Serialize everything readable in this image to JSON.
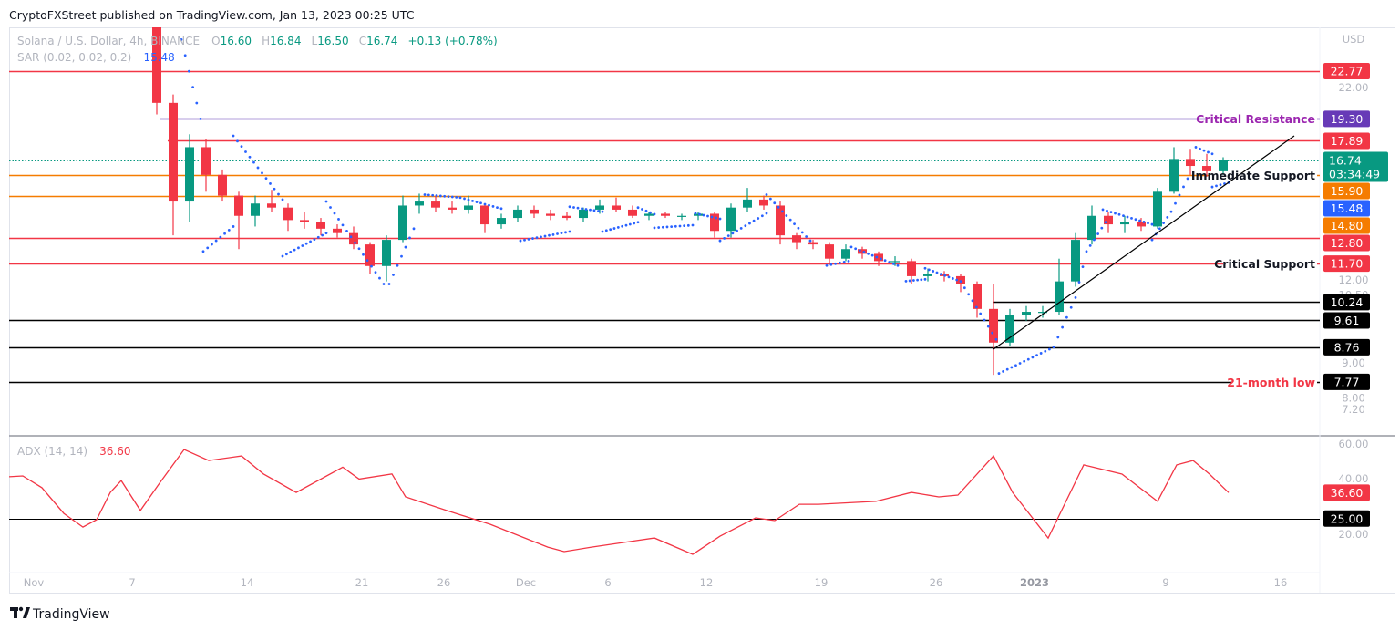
{
  "header": {
    "published": "CryptoFXStreet published on TradingView.com, Jan 13, 2023 00:25 UTC",
    "symbol": "Solana / U.S. Dollar, 4h, BINANCE",
    "open_label": "O",
    "open": "16.60",
    "high_label": "H",
    "high": "16.84",
    "low_label": "L",
    "low": "16.50",
    "close_label": "C",
    "close": "16.74",
    "change": "+0.13 (+0.78%)"
  },
  "sar_legend": {
    "label": "SAR (0.02, 0.02, 0.2)",
    "value": "15.48"
  },
  "adx_legend": {
    "label": "ADX (14, 14)",
    "value": "36.60"
  },
  "axis": {
    "currency": "USD",
    "price_scale": "log",
    "price_ticks": [
      "22.00",
      "12.00",
      "10.50",
      "9.00",
      "8.00",
      "7.20"
    ],
    "adx_ticks": [
      "60.00",
      "40.00",
      "20.00"
    ],
    "time_labels": [
      {
        "label": "Nov",
        "date": "2022-11-01 00:00"
      },
      {
        "label": "7",
        "date": "2022-11-07 00:00"
      },
      {
        "label": "14",
        "date": "2022-11-14 00:00"
      },
      {
        "label": "21",
        "date": "2022-11-21 00:00"
      },
      {
        "label": "26",
        "date": "2022-11-26 00:00"
      },
      {
        "label": "Dec",
        "date": "2022-12-01 00:00"
      },
      {
        "label": "6",
        "date": "2022-12-06 00:00"
      },
      {
        "label": "12",
        "date": "2022-12-12 00:00"
      },
      {
        "label": "19",
        "date": "2022-12-19 00:00"
      },
      {
        "label": "26",
        "date": "2022-12-26 00:00"
      },
      {
        "label": "2023",
        "date": "2023-01-01 00:00",
        "bold": true
      },
      {
        "label": "9",
        "date": "2023-01-09 00:00"
      },
      {
        "label": "16",
        "date": "2023-01-16 00:00"
      }
    ]
  },
  "colors": {
    "up": "#089981",
    "down": "#f23645",
    "sar": "#2962ff",
    "adx": "#f23645",
    "red_level": "#f23645",
    "purple_level": "#673ab7",
    "orange_level": "#f57c00",
    "black_level": "#000000"
  },
  "levels": [
    {
      "price": 22.77,
      "tag": "22.77",
      "color": "#f23645"
    },
    {
      "price": 19.3,
      "tag": "19.30",
      "color": "#673ab7",
      "start": "2022-11-08 16:00",
      "annotation": "Critical Resistance",
      "annotation_color": "#9c27b0"
    },
    {
      "price": 17.89,
      "tag": "17.89",
      "color": "#f23645",
      "start": "2022-11-09 04:00"
    },
    {
      "price": 15.9,
      "tag": "15.90",
      "color": "#f57c00",
      "annotation": "Immediate Support",
      "annotation_color": "#131722"
    },
    {
      "price": 14.8,
      "tag": "14.80",
      "color": "#f57c00"
    },
    {
      "price": 12.8,
      "tag": "12.80",
      "color": "#f23645"
    },
    {
      "price": 11.7,
      "tag": "11.70",
      "color": "#f23645",
      "annotation": "Critical Support",
      "annotation_color": "#131722"
    },
    {
      "price": 10.24,
      "tag": "10.24",
      "color": "#000000",
      "start": "2022-12-29 12:00"
    },
    {
      "price": 9.61,
      "tag": "9.61",
      "color": "#000000"
    },
    {
      "price": 8.76,
      "tag": "8.76",
      "color": "#000000"
    },
    {
      "price": 7.77,
      "tag": "7.77",
      "color": "#000000",
      "annotation": "21-month low",
      "annotation_color": "#f23645"
    }
  ],
  "current_price": {
    "value": "16.74",
    "price": 16.74,
    "countdown": "03:34:49",
    "color": "#089981"
  },
  "sar_tag": {
    "value": "15.48",
    "price": 15.48,
    "color": "#2962ff"
  },
  "adx_tags": [
    {
      "value": "36.60",
      "level": 36.6,
      "color": "#f23645"
    },
    {
      "value": "25.00",
      "level": 25.0,
      "color": "#000000",
      "line": true
    }
  ],
  "trendline": {
    "from": [
      "2022-12-29 12:00",
      8.7
    ],
    "to": [
      "2023-01-16 20:00",
      18.2
    ],
    "color": "#000000"
  },
  "chart_data": [
    {
      "type": "candlestick",
      "title": "Solana / U.S. Dollar, 4h, BINANCE",
      "ylim": [
        7.0,
        26.5
      ],
      "grid": false,
      "columns": [
        "date",
        "open",
        "high",
        "low",
        "close"
      ],
      "candles": [
        [
          "2022-11-08",
          26.8,
          27.5,
          19.6,
          20.4
        ],
        [
          "2022-11-09",
          20.4,
          21.0,
          12.9,
          14.5
        ],
        [
          "2022-11-10",
          14.5,
          18.3,
          13.5,
          17.5
        ],
        [
          "2022-11-11",
          17.5,
          18.0,
          15.0,
          15.9
        ],
        [
          "2022-11-12",
          15.9,
          16.2,
          14.5,
          14.8
        ],
        [
          "2022-11-13",
          14.8,
          15.0,
          12.3,
          13.8
        ],
        [
          "2022-11-14",
          13.8,
          14.8,
          13.3,
          14.4
        ],
        [
          "2022-11-15",
          14.4,
          15.1,
          14.0,
          14.2
        ],
        [
          "2022-11-16",
          14.2,
          14.4,
          13.1,
          13.6
        ],
        [
          "2022-11-17",
          13.6,
          14.0,
          13.2,
          13.5
        ],
        [
          "2022-11-18",
          13.5,
          13.7,
          12.9,
          13.2
        ],
        [
          "2022-11-19",
          13.2,
          13.4,
          12.8,
          13.0
        ],
        [
          "2022-11-20",
          13.0,
          13.3,
          12.3,
          12.5
        ],
        [
          "2022-11-21",
          12.5,
          12.6,
          11.3,
          11.6
        ],
        [
          "2022-11-22",
          11.6,
          12.9,
          11.0,
          12.7
        ],
        [
          "2022-11-23",
          12.7,
          14.8,
          12.6,
          14.3
        ],
        [
          "2022-11-24",
          14.3,
          14.9,
          13.9,
          14.5
        ],
        [
          "2022-11-25",
          14.5,
          14.8,
          14.0,
          14.2
        ],
        [
          "2022-11-26",
          14.2,
          14.5,
          13.9,
          14.1
        ],
        [
          "2022-11-27",
          14.1,
          14.8,
          13.9,
          14.3
        ],
        [
          "2022-11-28",
          14.3,
          14.4,
          13.0,
          13.4
        ],
        [
          "2022-11-29",
          13.4,
          13.9,
          13.2,
          13.7
        ],
        [
          "2022-11-30",
          13.7,
          14.3,
          13.5,
          14.1
        ],
        [
          "2022-12-01",
          14.1,
          14.3,
          13.7,
          13.9
        ],
        [
          "2022-12-02",
          13.9,
          14.1,
          13.6,
          13.8
        ],
        [
          "2022-12-03",
          13.8,
          14.0,
          13.6,
          13.7
        ],
        [
          "2022-12-04",
          13.7,
          14.2,
          13.5,
          14.1
        ],
        [
          "2022-12-05",
          14.1,
          14.6,
          13.9,
          14.3
        ],
        [
          "2022-12-06",
          14.3,
          14.7,
          14.0,
          14.1
        ],
        [
          "2022-12-07",
          14.1,
          14.3,
          13.7,
          13.8
        ],
        [
          "2022-12-08",
          13.8,
          14.0,
          13.6,
          13.9
        ],
        [
          "2022-12-09",
          13.9,
          14.0,
          13.7,
          13.8
        ],
        [
          "2022-12-10",
          13.8,
          13.9,
          13.6,
          13.8
        ],
        [
          "2022-12-11",
          13.8,
          14.0,
          13.6,
          13.9
        ],
        [
          "2022-12-12",
          13.9,
          14.0,
          12.8,
          13.1
        ],
        [
          "2022-12-13",
          13.1,
          14.4,
          12.8,
          14.2
        ],
        [
          "2022-12-14",
          14.2,
          15.2,
          14.0,
          14.6
        ],
        [
          "2022-12-15",
          14.6,
          14.8,
          14.1,
          14.3
        ],
        [
          "2022-12-16",
          14.3,
          14.5,
          12.5,
          12.9
        ],
        [
          "2022-12-17",
          12.9,
          13.0,
          12.3,
          12.6
        ],
        [
          "2022-12-18",
          12.6,
          12.7,
          12.3,
          12.5
        ],
        [
          "2022-12-19",
          12.5,
          12.6,
          11.7,
          11.9
        ],
        [
          "2022-12-20",
          11.9,
          12.5,
          11.8,
          12.3
        ],
        [
          "2022-12-21",
          12.3,
          12.4,
          11.9,
          12.1
        ],
        [
          "2022-12-22",
          12.1,
          12.2,
          11.6,
          11.8
        ],
        [
          "2022-12-23",
          11.8,
          12.0,
          11.6,
          11.8
        ],
        [
          "2022-12-24",
          11.8,
          11.9,
          10.9,
          11.2
        ],
        [
          "2022-12-25",
          11.2,
          11.5,
          11.0,
          11.3
        ],
        [
          "2022-12-26",
          11.3,
          11.4,
          11.0,
          11.2
        ],
        [
          "2022-12-27",
          11.2,
          11.3,
          10.6,
          10.9
        ],
        [
          "2022-12-28",
          10.9,
          11.0,
          9.7,
          10.0
        ],
        [
          "2022-12-29",
          10.0,
          10.9,
          7.96,
          8.9
        ],
        [
          "2022-12-30",
          8.9,
          10.0,
          8.8,
          9.8
        ],
        [
          "2022-12-31",
          9.8,
          10.1,
          9.6,
          9.9
        ],
        [
          "2023-01-01",
          9.9,
          10.1,
          9.7,
          9.9
        ],
        [
          "2023-01-02",
          9.9,
          11.9,
          9.8,
          11.0
        ],
        [
          "2023-01-03",
          11.0,
          13.0,
          10.8,
          12.7
        ],
        [
          "2023-01-04",
          12.7,
          14.3,
          12.5,
          13.8
        ],
        [
          "2023-01-05",
          13.8,
          14.0,
          13.0,
          13.4
        ],
        [
          "2023-01-06",
          13.4,
          13.8,
          13.0,
          13.5
        ],
        [
          "2023-01-07",
          13.5,
          13.7,
          13.1,
          13.3
        ],
        [
          "2023-01-08",
          13.3,
          15.2,
          13.2,
          15.0
        ],
        [
          "2023-01-09",
          15.0,
          17.5,
          14.9,
          16.8
        ],
        [
          "2023-01-10",
          16.8,
          17.4,
          15.9,
          16.4
        ],
        [
          "2023-01-11",
          16.4,
          17.1,
          15.8,
          16.1
        ],
        [
          "2023-01-12",
          16.1,
          16.9,
          15.9,
          16.74
        ]
      ],
      "sar_name": "SAR (0.02, 0.02, 0.2)",
      "sar_segments": [
        [
          [
            "2022-11-10 00:00",
            25.4
          ],
          [
            "2022-11-11 04:00",
            19.3
          ]
        ],
        [
          [
            "2022-11-11 08:00",
            12.2
          ],
          [
            "2022-11-13 04:00",
            13.3
          ]
        ],
        [
          [
            "2022-11-13 04:00",
            18.2
          ],
          [
            "2022-11-16 04:00",
            14.6
          ]
        ],
        [
          [
            "2022-11-16 04:00",
            12.0
          ],
          [
            "2022-11-18 20:00",
            13.0
          ]
        ],
        [
          [
            "2022-11-18 20:00",
            14.5
          ],
          [
            "2022-11-22 08:00",
            10.9
          ]
        ],
        [
          [
            "2022-11-22 16:00",
            10.9
          ],
          [
            "2022-11-24 04:00",
            13.2
          ]
        ],
        [
          [
            "2022-11-24 20:00",
            14.85
          ],
          [
            "2022-11-27 00:00",
            14.7
          ],
          [
            "2022-11-29 12:00",
            14.15
          ]
        ],
        [
          [
            "2022-11-30 16:00",
            12.66
          ],
          [
            "2022-12-03 16:00",
            13.07
          ]
        ],
        [
          [
            "2022-12-03 16:00",
            14.24
          ],
          [
            "2022-12-05 16:00",
            14.0
          ]
        ],
        [
          [
            "2022-12-05 16:00",
            13.07
          ],
          [
            "2022-12-07 20:00",
            13.5
          ]
        ],
        [
          [
            "2022-12-07 20:00",
            14.2
          ],
          [
            "2022-12-08 20:00",
            13.88
          ]
        ],
        [
          [
            "2022-12-08 20:00",
            13.24
          ],
          [
            "2022-12-11 04:00",
            13.36
          ]
        ],
        [
          [
            "2022-12-11 08:00",
            13.92
          ],
          [
            "2022-12-12 20:00",
            13.66
          ]
        ],
        [
          [
            "2022-12-12 20:00",
            12.66
          ],
          [
            "2022-12-15 16:00",
            13.92
          ]
        ],
        [
          [
            "2022-12-15 16:00",
            14.85
          ],
          [
            "2022-12-18 08:00",
            12.66
          ]
        ],
        [
          [
            "2022-12-19 08:00",
            11.62
          ],
          [
            "2022-12-20 16:00",
            11.8
          ]
        ],
        [
          [
            "2022-12-20 20:00",
            12.39
          ],
          [
            "2022-12-23 16:00",
            11.62
          ]
        ],
        [
          [
            "2022-12-24 04:00",
            11.01
          ],
          [
            "2022-12-25 08:00",
            11.08
          ]
        ],
        [
          [
            "2022-12-25 08:00",
            11.51
          ],
          [
            "2022-12-27 12:00",
            11.0
          ],
          [
            "2022-12-29 16:00",
            9.0
          ]
        ],
        [
          [
            "2022-12-29 20:00",
            8.0
          ],
          [
            "2023-01-02 04:00",
            8.76
          ],
          [
            "2023-01-03 12:00",
            10.4
          ],
          [
            "2023-01-04 04:00",
            12.2
          ],
          [
            "2023-01-05 08:00",
            13.5
          ]
        ],
        [
          [
            "2023-01-05 04:00",
            14.1
          ],
          [
            "2023-01-08 04:00",
            13.4
          ]
        ],
        [
          [
            "2023-01-08 04:00",
            12.7
          ],
          [
            "2023-01-09 08:00",
            14.0
          ],
          [
            "2023-01-10 08:00",
            15.7
          ]
        ],
        [
          [
            "2023-01-10 20:00",
            17.5
          ],
          [
            "2023-01-11 20:00",
            17.1
          ]
        ],
        [
          [
            "2023-01-11 20:00",
            15.25
          ],
          [
            "2023-01-12 20:00",
            15.48
          ]
        ]
      ]
    },
    {
      "type": "line",
      "title": "ADX (14, 14)",
      "ylim": [
        0,
        65
      ],
      "reference_line": 25,
      "series": [
        {
          "name": "ADX (14, 14)",
          "points": [
            [
              "2022-10-30 12:00",
              43.7
            ],
            [
              "2022-10-31 08:00",
              44.1
            ],
            [
              "2022-11-01 12:00",
              38.8
            ],
            [
              "2022-11-02 20:00",
              27.3
            ],
            [
              "2022-11-04 00:00",
              21.2
            ],
            [
              "2022-11-04 20:00",
              24.5
            ],
            [
              "2022-11-05 16:00",
              36.7
            ],
            [
              "2022-11-06 08:00",
              42.0
            ],
            [
              "2022-11-07 12:00",
              28.6
            ],
            [
              "2022-11-08 16:00",
              40.8
            ],
            [
              "2022-11-10 04:00",
              55.9
            ],
            [
              "2022-11-11 16:00",
              51.0
            ],
            [
              "2022-11-13 16:00",
              53.0
            ],
            [
              "2022-11-15 00:00",
              45.0
            ],
            [
              "2022-11-17 00:00",
              36.7
            ],
            [
              "2022-11-19 20:00",
              48.0
            ],
            [
              "2022-11-20 20:00",
              42.7
            ],
            [
              "2022-11-22 20:00",
              45.0
            ],
            [
              "2022-11-23 16:00",
              34.7
            ],
            [
              "2022-11-26 04:00",
              28.6
            ],
            [
              "2022-11-28 20:00",
              22.4
            ],
            [
              "2022-12-02 08:00",
              12.2
            ],
            [
              "2022-12-03 08:00",
              10.2
            ],
            [
              "2022-12-05 00:00",
              12.2
            ],
            [
              "2022-12-07 08:00",
              14.7
            ],
            [
              "2022-12-08 20:00",
              16.3
            ],
            [
              "2022-12-11 04:00",
              9.0
            ],
            [
              "2022-12-12 20:00",
              17.1
            ],
            [
              "2022-12-15 00:00",
              25.3
            ],
            [
              "2022-12-16 04:00",
              24.1
            ],
            [
              "2022-12-17 16:00",
              31.4
            ],
            [
              "2022-12-18 20:00",
              31.4
            ],
            [
              "2022-12-22 08:00",
              32.7
            ],
            [
              "2022-12-24 12:00",
              36.7
            ],
            [
              "2022-12-26 04:00",
              34.7
            ],
            [
              "2022-12-27 08:00",
              35.5
            ],
            [
              "2022-12-29 12:00",
              53.0
            ],
            [
              "2022-12-30 16:00",
              36.7
            ],
            [
              "2023-01-01 20:00",
              16.3
            ],
            [
              "2023-01-04 00:00",
              49.0
            ],
            [
              "2023-01-06 08:00",
              44.9
            ],
            [
              "2023-01-08 12:00",
              32.7
            ],
            [
              "2023-01-09 16:00",
              49.0
            ],
            [
              "2023-01-10 16:00",
              51.0
            ],
            [
              "2023-01-11 16:00",
              44.9
            ],
            [
              "2023-01-12 20:00",
              36.6
            ]
          ]
        }
      ]
    }
  ],
  "footer": {
    "logo": "TradingView"
  }
}
